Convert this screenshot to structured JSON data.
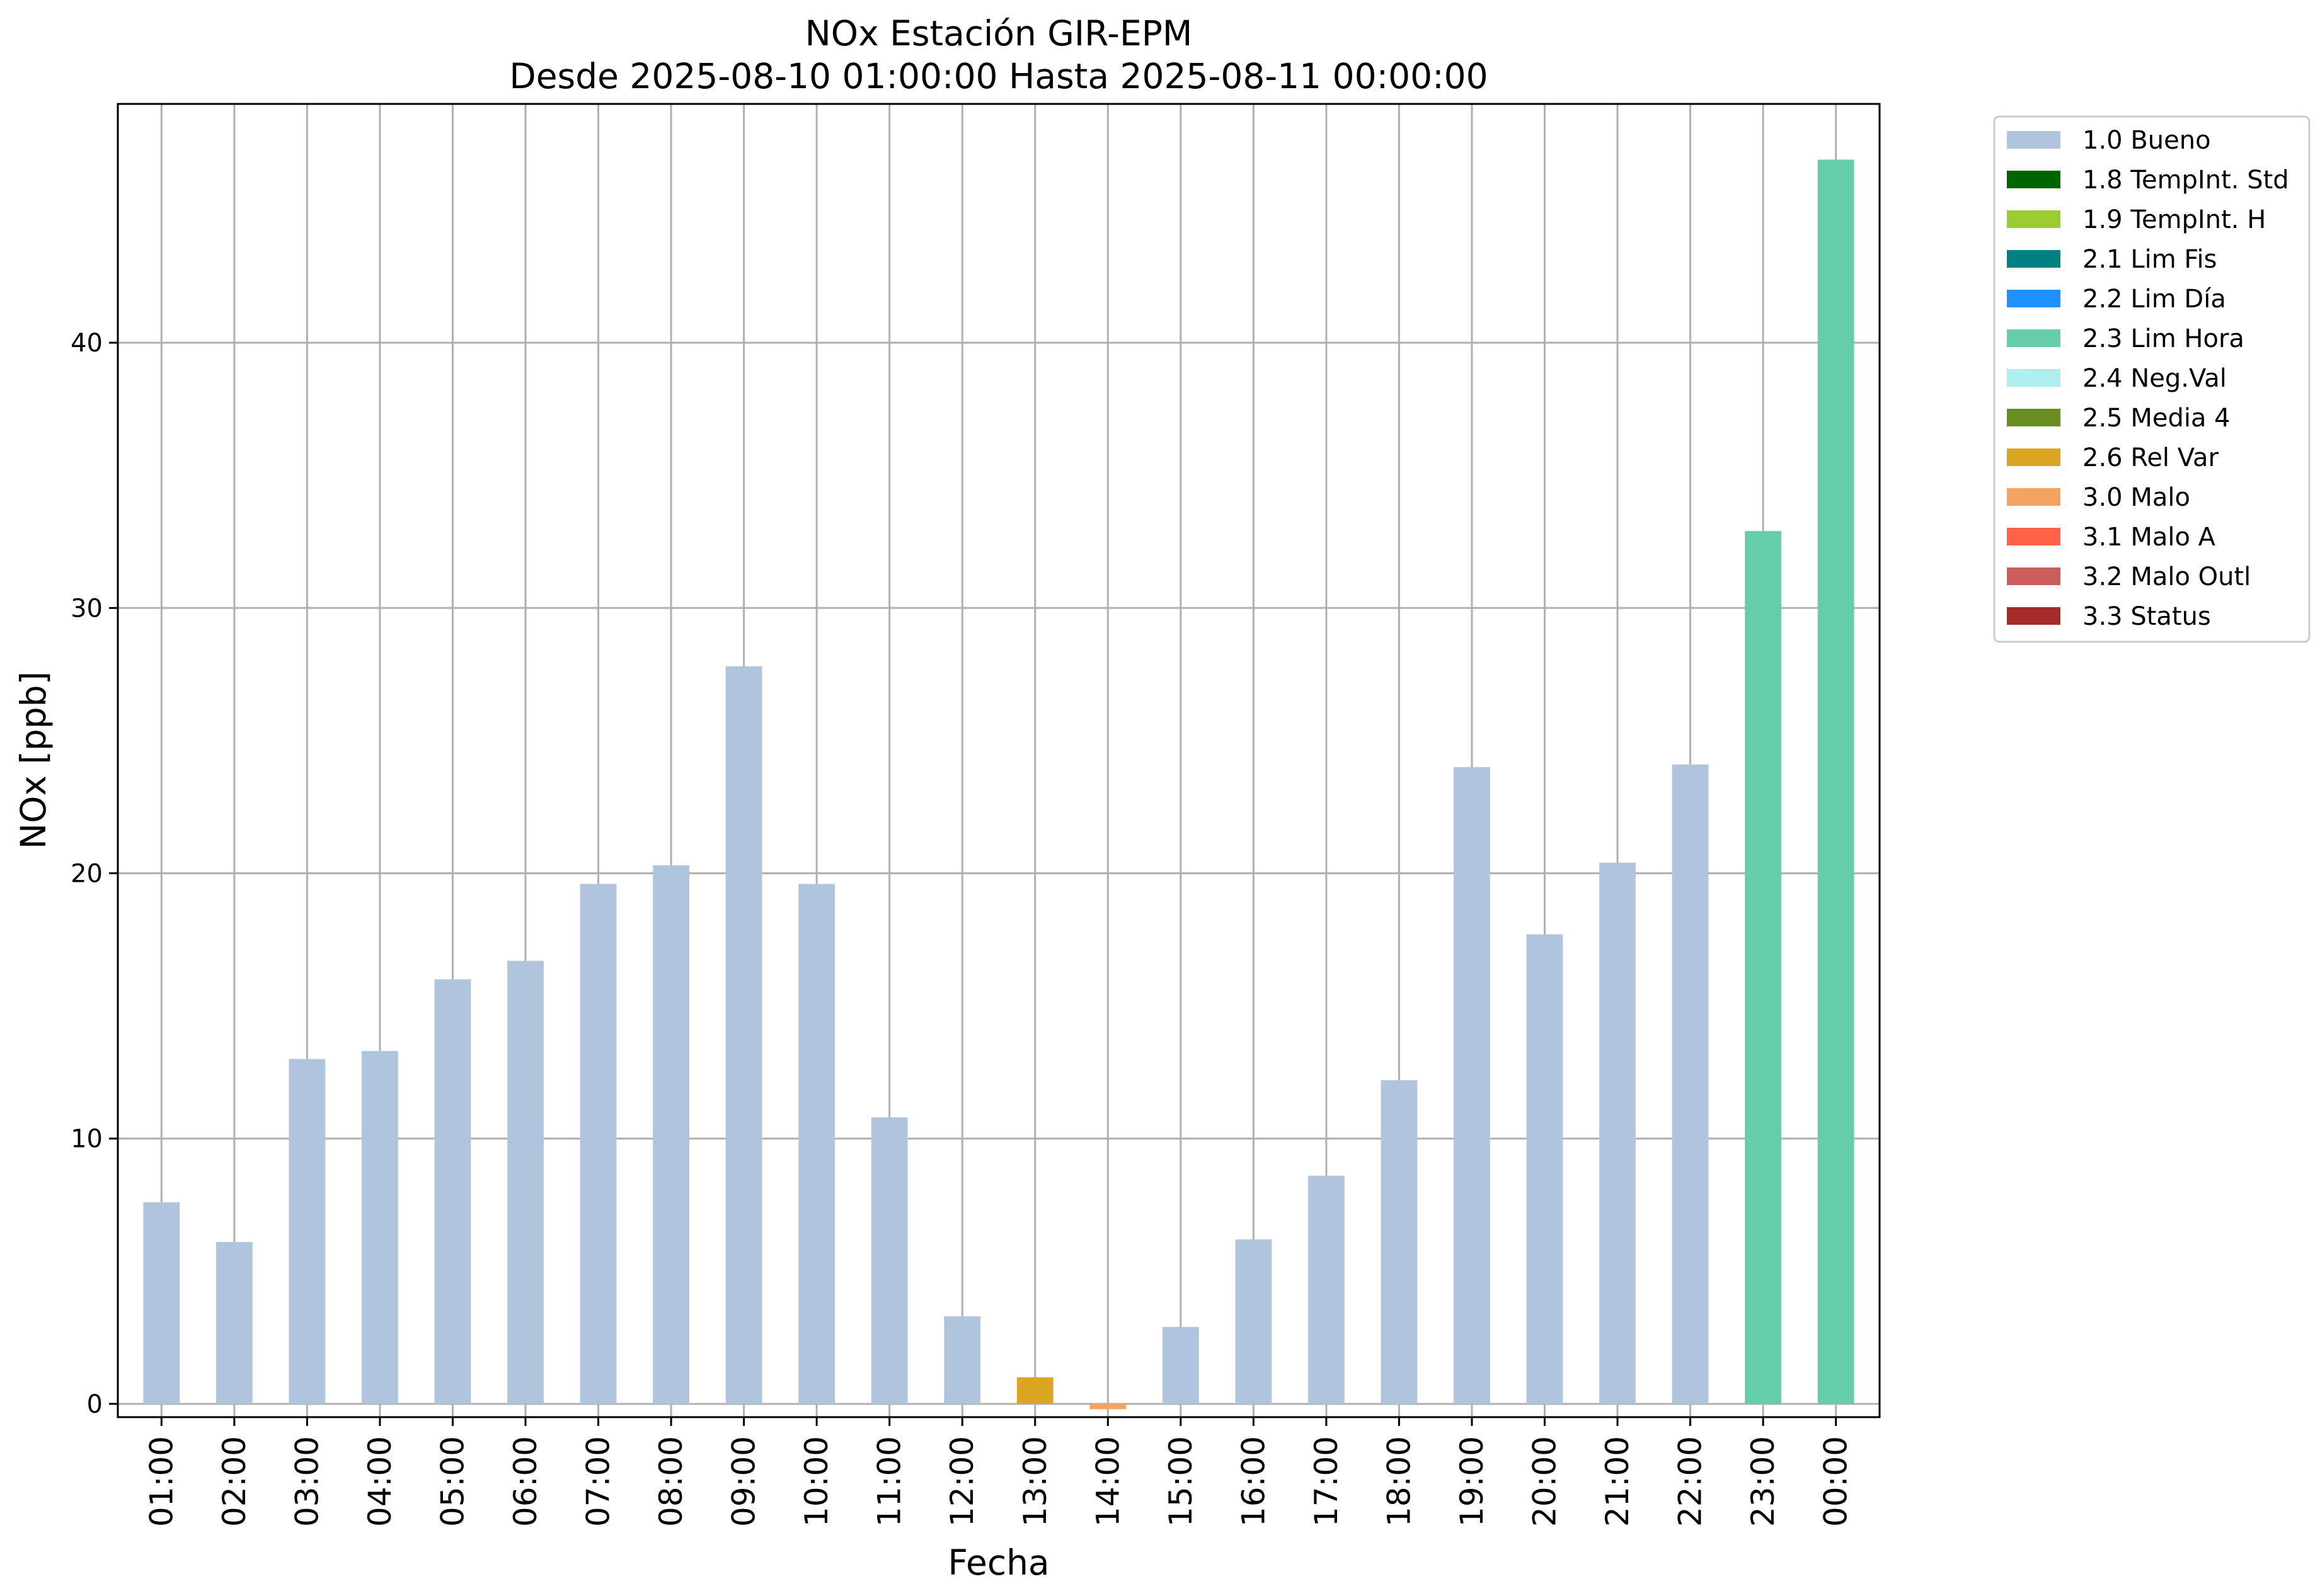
{
  "chart_data": {
    "type": "bar",
    "title": "NOx Estación GIR-EPM",
    "subtitle": "Desde 2025-08-10 01:00:00 Hasta 2025-08-11 00:00:00",
    "xlabel": "Fecha",
    "ylabel": "NOx [ppb]",
    "ylim": [
      -0.5,
      49
    ],
    "yticks": [
      0,
      10,
      20,
      30,
      40
    ],
    "grid": true,
    "legend_position": "outside-top-right",
    "categories": [
      "01:00",
      "02:00",
      "03:00",
      "04:00",
      "05:00",
      "06:00",
      "07:00",
      "08:00",
      "09:00",
      "10:00",
      "11:00",
      "12:00",
      "13:00",
      "14:00",
      "15:00",
      "16:00",
      "17:00",
      "18:00",
      "19:00",
      "20:00",
      "21:00",
      "22:00",
      "23:00",
      "00:00"
    ],
    "values": [
      7.6,
      6.1,
      13.0,
      13.3,
      16.0,
      16.7,
      19.6,
      20.3,
      27.8,
      19.6,
      10.8,
      3.3,
      1.0,
      -0.2,
      2.9,
      6.2,
      8.6,
      12.2,
      24.0,
      17.7,
      20.4,
      24.1,
      32.9,
      46.9
    ],
    "flags": [
      "1.0 Bueno",
      "1.0 Bueno",
      "1.0 Bueno",
      "1.0 Bueno",
      "1.0 Bueno",
      "1.0 Bueno",
      "1.0 Bueno",
      "1.0 Bueno",
      "1.0 Bueno",
      "1.0 Bueno",
      "1.0 Bueno",
      "1.0 Bueno",
      "2.6 Rel Var",
      "3.0 Malo",
      "1.0 Bueno",
      "1.0 Bueno",
      "1.0 Bueno",
      "1.0 Bueno",
      "1.0 Bueno",
      "1.0 Bueno",
      "1.0 Bueno",
      "1.0 Bueno",
      "2.3 Lim Hora",
      "2.3 Lim Hora"
    ],
    "legend": [
      {
        "label": "1.0 Bueno",
        "color": "#b0c4de"
      },
      {
        "label": "1.8 TempInt. Std",
        "color": "#006400"
      },
      {
        "label": "1.9 TempInt. H",
        "color": "#9acd32"
      },
      {
        "label": "2.1 Lim Fis",
        "color": "#008080"
      },
      {
        "label": "2.2 Lim Día",
        "color": "#1e90ff"
      },
      {
        "label": "2.3 Lim Hora",
        "color": "#66cdaa"
      },
      {
        "label": "2.4 Neg.Val",
        "color": "#afeeee"
      },
      {
        "label": "2.5 Media 4",
        "color": "#6b8e23"
      },
      {
        "label": "2.6 Rel Var",
        "color": "#daa520"
      },
      {
        "label": "3.0 Malo",
        "color": "#f4a460"
      },
      {
        "label": "3.1 Malo A",
        "color": "#ff6347"
      },
      {
        "label": "3.2 Malo Outl",
        "color": "#cd5c5c"
      },
      {
        "label": "3.3 Status",
        "color": "#a52a2a"
      }
    ]
  }
}
